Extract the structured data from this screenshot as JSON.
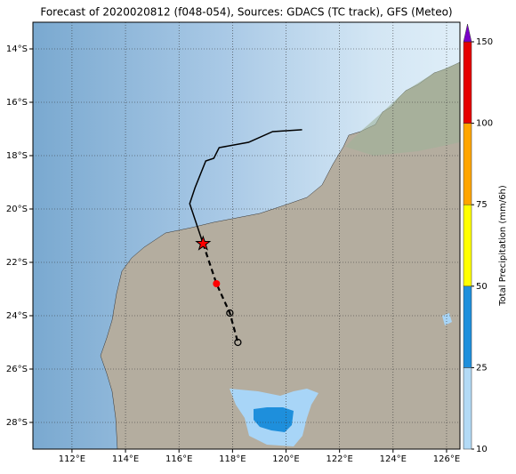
{
  "chart_data": {
    "type": "map",
    "title": "Forecast of 2020020812 (f048-054), Sources: GDACS (TC track), GFS (Meteo)",
    "xlim": [
      110.54,
      126.5
    ],
    "ylim": [
      -29,
      -13
    ],
    "grid": true,
    "xticks": [
      {
        "value": 112,
        "label": "112°E"
      },
      {
        "value": 114,
        "label": "114°E"
      },
      {
        "value": 116,
        "label": "116°E"
      },
      {
        "value": 118,
        "label": "118°E"
      },
      {
        "value": 120,
        "label": "120°E"
      },
      {
        "value": 122,
        "label": "122°E"
      },
      {
        "value": 124,
        "label": "124°E"
      },
      {
        "value": 126,
        "label": "126°E"
      }
    ],
    "yticks": [
      {
        "value": -14,
        "label": "14°S"
      },
      {
        "value": -16,
        "label": "16°S"
      },
      {
        "value": -18,
        "label": "18°S"
      },
      {
        "value": -20,
        "label": "20°S"
      },
      {
        "value": -22,
        "label": "22°S"
      },
      {
        "value": -24,
        "label": "24°S"
      },
      {
        "value": -26,
        "label": "26°S"
      },
      {
        "value": -28,
        "label": "28°S"
      }
    ],
    "track": {
      "color": "#000000",
      "x": [
        120.6,
        119.5,
        118.6,
        117.5,
        117.3,
        117.0,
        116.6,
        116.4,
        116.9
      ],
      "y": [
        -17.03,
        -17.1,
        -17.5,
        -17.7,
        -18.1,
        -18.2,
        -19.2,
        -19.8,
        -21.3
      ]
    },
    "forecast": {
      "color": "#000000",
      "marker_color": "#ff0000",
      "x": [
        116.9,
        117.4,
        117.9,
        118.2
      ],
      "y": [
        -21.3,
        -22.8,
        -23.9,
        -25.0
      ]
    },
    "storm_color": "#ff0000",
    "colorbar": {
      "label": "Total Precipitation (mm/6h)",
      "ticks": [
        10,
        25,
        50,
        75,
        100,
        150
      ],
      "colors": [
        "#b3daf6",
        "#1e8fdc",
        "#ffff00",
        "#ffa500",
        "#e60000"
      ],
      "extend_color": "#7a00c8"
    }
  }
}
